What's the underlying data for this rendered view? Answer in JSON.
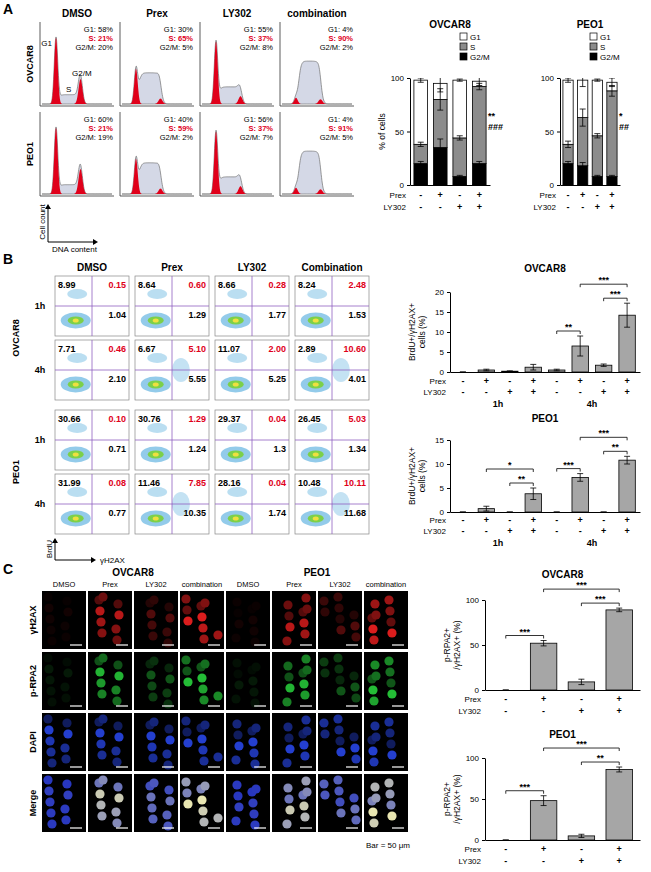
{
  "figure": {
    "panel_labels": [
      "A",
      "B",
      "C"
    ],
    "histograms": {
      "columns": [
        "DMSO",
        "Prex",
        "LY302",
        "combination"
      ],
      "rows": [
        {
          "label": "OVCAR8",
          "cells": [
            [
              "G1: 58%",
              "S: 21%",
              "G2/M: 20%"
            ],
            [
              "G1: 30%",
              "S: 65%",
              "G2/M: 5%"
            ],
            [
              "G1: 55%",
              "S: 37%",
              "G2/M: 8%"
            ],
            [
              "G1: 4%",
              "S: 90%",
              "G2/M: 2%"
            ]
          ]
        },
        {
          "label": "PEO1",
          "cells": [
            [
              "G1: 60%",
              "S: 21%",
              "G2/M: 19%"
            ],
            [
              "G1: 40%",
              "S: 59%",
              "G2/M: 2%"
            ],
            [
              "G1: 56%",
              "S: 37%",
              "G2/M: 7%"
            ],
            [
              "G1: 4%",
              "S: 91%",
              "G2/M: 5%"
            ]
          ]
        }
      ],
      "peak_labels": [
        "G1",
        "S",
        "G2/M"
      ],
      "x_label": "DNA content",
      "y_label": "Cell count"
    },
    "flow": {
      "columns": [
        "DMSO",
        "Prex",
        "LY302",
        "Combination"
      ],
      "rows": [
        {
          "label": "OVCAR8",
          "times": [
            {
              "label": "1h",
              "cells": [
                [
                  "8.99",
                  "0.15",
                  "1.04"
                ],
                [
                  "8.64",
                  "0.60",
                  "1.29"
                ],
                [
                  "8.66",
                  "0.28",
                  "1.77"
                ],
                [
                  "8.24",
                  "2.48",
                  "1.53"
                ]
              ]
            },
            {
              "label": "4h",
              "cells": [
                [
                  "7.71",
                  "0.46",
                  "2.10"
                ],
                [
                  "6.67",
                  "5.10",
                  "5.55"
                ],
                [
                  "11.07",
                  "2.00",
                  "5.25"
                ],
                [
                  "2.89",
                  "10.60",
                  "4.01"
                ]
              ]
            }
          ]
        },
        {
          "label": "PEO1",
          "times": [
            {
              "label": "1h",
              "cells": [
                [
                  "30.66",
                  "0.10",
                  "0.71"
                ],
                [
                  "30.76",
                  "1.29",
                  "1.24"
                ],
                [
                  "29.37",
                  "0.04",
                  "1.3"
                ],
                [
                  "26.45",
                  "5.03",
                  "1.34"
                ]
              ]
            },
            {
              "label": "4h",
              "cells": [
                [
                  "31.99",
                  "0.08",
                  "0.77"
                ],
                [
                  "11.46",
                  "7.85",
                  "10.35"
                ],
                [
                  "28.16",
                  "0.04",
                  "1.74"
                ],
                [
                  "10.48",
                  "10.11",
                  "11.68"
                ]
              ]
            }
          ]
        }
      ],
      "x_label": "γH2AX",
      "y_label": "BrdU"
    },
    "microscopy": {
      "groups": [
        {
          "label": "OVCAR8",
          "columns": [
            "DMSO",
            "Prex",
            "LY302",
            "combination"
          ]
        },
        {
          "label": "PEO1",
          "columns": [
            "DMSO",
            "Prex",
            "LY302",
            "combination"
          ]
        }
      ],
      "rows": [
        "γH2AX",
        "p-RPA2",
        "DAPI",
        "Merge"
      ],
      "scale_note": "Bar = 50 μm"
    }
  },
  "chart_data": [
    {
      "type": "bar",
      "title": "OVCAR8",
      "ylabel": "% of cells",
      "categories": [
        null,
        null,
        null,
        null
      ],
      "stacked": true,
      "legend": "top-right",
      "series": [
        {
          "name": "G2/M",
          "color": "#000000",
          "values": [
            20,
            35,
            8,
            20
          ],
          "errors": [
            2,
            8,
            1,
            2
          ]
        },
        {
          "name": "S",
          "color": "#8c8c8c",
          "values": [
            18,
            45,
            36,
            72
          ],
          "errors": [
            2,
            10,
            2,
            3
          ]
        },
        {
          "name": "G1",
          "color": "#ffffff",
          "values": [
            60,
            15,
            54,
            5
          ],
          "errors": [
            2,
            8,
            1,
            4
          ]
        }
      ],
      "ylim": [
        0,
        100
      ],
      "yticks": [
        0,
        50,
        100
      ],
      "treatments": [
        {
          "label": "Prex",
          "values": [
            "-",
            "+",
            "-",
            "+"
          ]
        },
        {
          "label": "LY302",
          "values": [
            "-",
            "-",
            "+",
            "+"
          ]
        }
      ],
      "annotations": [
        {
          "text": "**",
          "at": 3
        },
        {
          "text": "###",
          "at": 3
        }
      ]
    },
    {
      "type": "bar",
      "title": "PEO1",
      "categories": [
        null,
        null,
        null,
        null
      ],
      "stacked": true,
      "legend": "top-right",
      "series": [
        {
          "name": "G2/M",
          "color": "#000000",
          "values": [
            20,
            18,
            8,
            8
          ],
          "errors": [
            2,
            3,
            1,
            1
          ]
        },
        {
          "name": "S",
          "color": "#8c8c8c",
          "values": [
            18,
            45,
            38,
            80
          ],
          "errors": [
            3,
            8,
            2,
            5
          ]
        },
        {
          "name": "G1",
          "color": "#ffffff",
          "values": [
            60,
            35,
            52,
            8
          ],
          "errors": [
            2,
            6,
            1,
            4
          ]
        }
      ],
      "ylim": [
        0,
        100
      ],
      "yticks": [
        0,
        50,
        100
      ],
      "treatments": [
        {
          "label": "Prex",
          "values": [
            "-",
            "+",
            "-",
            "+"
          ]
        },
        {
          "label": "LY302",
          "values": [
            "-",
            "-",
            "+",
            "+"
          ]
        }
      ],
      "annotations": [
        {
          "text": "*",
          "at": 3
        },
        {
          "text": "##",
          "at": 3
        }
      ]
    },
    {
      "type": "bar",
      "title": "OVCAR8",
      "ylabel": [
        "BrdU+/γH2AX+",
        "cells (%)"
      ],
      "categories": [
        null,
        null,
        null,
        null,
        null,
        null,
        null,
        null
      ],
      "values": [
        0,
        0.5,
        0.2,
        1.2,
        0.5,
        6.5,
        1.7,
        14.2
      ],
      "errors": [
        0,
        0.2,
        0.1,
        0.7,
        0.2,
        2.5,
        0.3,
        3
      ],
      "color": "#a6a6a6",
      "ylim": [
        0,
        20
      ],
      "yticks": [
        0,
        5,
        10,
        15,
        20
      ],
      "treatments": [
        {
          "label": "Prex",
          "values": [
            "-",
            "+",
            "-",
            "+",
            "-",
            "+",
            "-",
            "+"
          ]
        },
        {
          "label": "LY302",
          "values": [
            "-",
            "-",
            "+",
            "+",
            "-",
            "-",
            "+",
            "+"
          ]
        }
      ],
      "groups": [
        {
          "label": "1h",
          "from": 0,
          "to": 3
        },
        {
          "label": "4h",
          "from": 4,
          "to": 7
        }
      ],
      "annotations": [
        {
          "text": "**",
          "from": 4,
          "to": 5
        },
        {
          "text": "***",
          "from": 6,
          "to": 7
        },
        {
          "text": "***",
          "from": 5,
          "to": 7
        }
      ]
    },
    {
      "type": "bar",
      "title": "PEO1",
      "ylabel": [
        "BrdU+/γH2AX+",
        "cells (%)"
      ],
      "categories": [
        null,
        null,
        null,
        null,
        null,
        null,
        null,
        null
      ],
      "values": [
        0,
        0.7,
        0,
        3.8,
        0,
        7.2,
        0,
        10.8
      ],
      "errors": [
        0,
        0.5,
        0,
        1.2,
        0,
        0.8,
        0,
        0.8
      ],
      "color": "#a6a6a6",
      "ylim": [
        0,
        15
      ],
      "yticks": [
        0,
        5,
        10,
        15
      ],
      "treatments": [
        {
          "label": "Prex",
          "values": [
            "-",
            "+",
            "-",
            "+",
            "-",
            "+",
            "-",
            "+"
          ]
        },
        {
          "label": "LY302",
          "values": [
            "-",
            "-",
            "+",
            "+",
            "-",
            "-",
            "+",
            "+"
          ]
        }
      ],
      "groups": [
        {
          "label": "1h",
          "from": 0,
          "to": 3
        },
        {
          "label": "4h",
          "from": 4,
          "to": 7
        }
      ],
      "annotations": [
        {
          "text": "**",
          "from": 2,
          "to": 3
        },
        {
          "text": "*",
          "from": 1,
          "to": 3
        },
        {
          "text": "***",
          "from": 4,
          "to": 5
        },
        {
          "text": "**",
          "from": 6,
          "to": 7
        },
        {
          "text": "***",
          "from": 5,
          "to": 7
        }
      ]
    },
    {
      "type": "bar",
      "title": "OVCAR8",
      "ylabel": [
        "p-RPA2+",
        "/γH2AX+ (%)"
      ],
      "categories": [
        null,
        null,
        null,
        null
      ],
      "values": [
        0,
        52,
        9,
        89
      ],
      "errors": [
        0,
        3,
        3,
        2
      ],
      "color": "#a6a6a6",
      "ylim": [
        0,
        100
      ],
      "yticks": [
        0,
        50,
        100
      ],
      "treatments": [
        {
          "label": "Prex",
          "values": [
            "-",
            "+",
            "-",
            "+"
          ]
        },
        {
          "label": "LY302",
          "values": [
            "-",
            "-",
            "+",
            "+"
          ]
        }
      ],
      "annotations": [
        {
          "text": "***",
          "from": 0,
          "to": 1
        },
        {
          "text": "***",
          "from": 2,
          "to": 3
        },
        {
          "text": "***",
          "from": 1,
          "to": 3
        }
      ]
    },
    {
      "type": "bar",
      "title": "PEO1",
      "ylabel": [
        "p-RPA2+",
        "/γH2AX+ (%)"
      ],
      "categories": [
        null,
        null,
        null,
        null
      ],
      "values": [
        0,
        48,
        5,
        86
      ],
      "errors": [
        0,
        6,
        2,
        3
      ],
      "color": "#a6a6a6",
      "ylim": [
        0,
        100
      ],
      "yticks": [
        0,
        50,
        100
      ],
      "treatments": [
        {
          "label": "Prex",
          "values": [
            "-",
            "+",
            "-",
            "+"
          ]
        },
        {
          "label": "LY302",
          "values": [
            "-",
            "-",
            "+",
            "+"
          ]
        }
      ],
      "annotations": [
        {
          "text": "***",
          "from": 0,
          "to": 1
        },
        {
          "text": "**",
          "from": 2,
          "to": 3
        },
        {
          "text": "***",
          "from": 1,
          "to": 3
        }
      ]
    }
  ]
}
